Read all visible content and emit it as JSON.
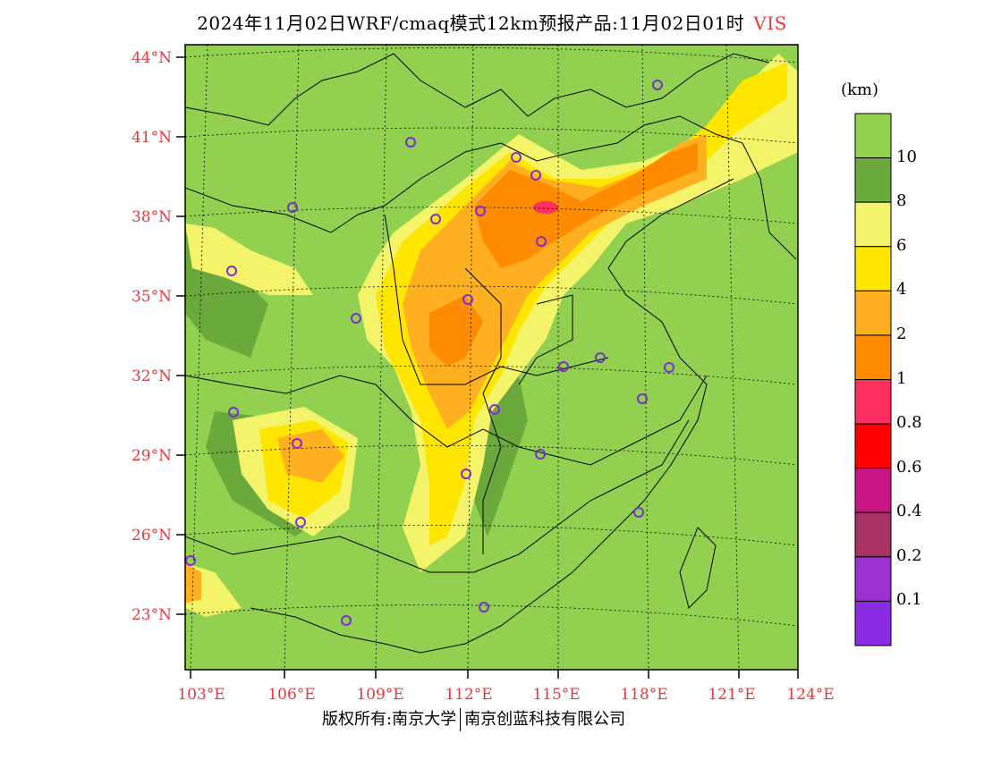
{
  "header": {
    "title": "2024年11月02日WRF/cmaq模式12km预报产品:11月02日01时",
    "variable": "VIS"
  },
  "map": {
    "lat_labels": [
      "44°N",
      "41°N",
      "38°N",
      "35°N",
      "32°N",
      "29°N",
      "26°N",
      "23°N"
    ],
    "lon_labels": [
      "103°E",
      "106°E",
      "109°E",
      "112°E",
      "115°E",
      "118°E",
      "121°E",
      "124°E"
    ],
    "colors": {
      "background": "#92d050",
      "band_10": "#6aa93c",
      "band_6": "#f4f46a",
      "band_4": "#ffe600",
      "band_2": "#ffb020",
      "band_1": "#ff8c00",
      "band_08": "#ff3060",
      "station": "#7b2fd0"
    }
  },
  "colorbar": {
    "unit": "(km)",
    "labels": [
      "10",
      "8",
      "6",
      "4",
      "2",
      "1",
      "0.8",
      "0.6",
      "0.4",
      "0.2",
      "0.1"
    ],
    "colors": [
      "#92d050",
      "#6aa93c",
      "#f4f46a",
      "#ffe600",
      "#ffb020",
      "#ff8c00",
      "#ff3060",
      "#ff0000",
      "#c71585",
      "#a83264",
      "#9b30d0",
      "#8a2be2"
    ]
  },
  "footer": {
    "left": "版权所有:南京大学",
    "right": "南京创蓝科技有限公司"
  }
}
